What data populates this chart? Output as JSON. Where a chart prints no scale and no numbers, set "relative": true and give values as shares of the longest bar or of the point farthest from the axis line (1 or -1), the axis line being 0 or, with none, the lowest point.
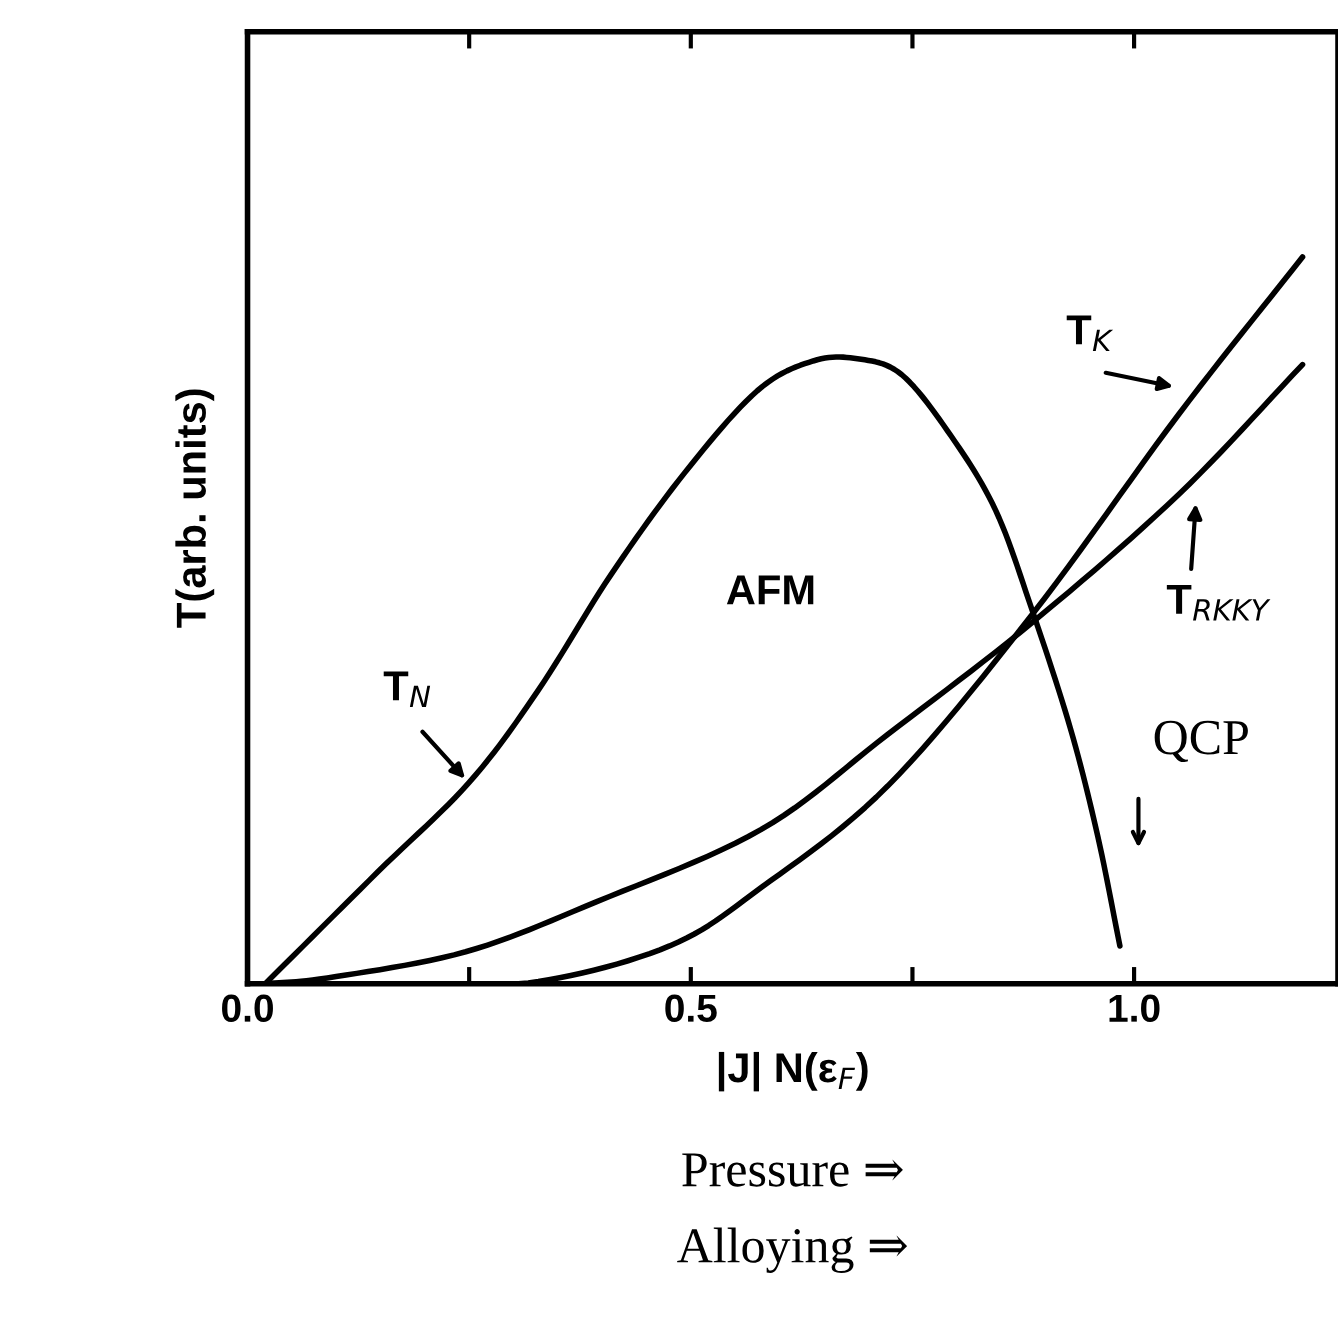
{
  "chart_data": {
    "type": "line",
    "relative": true,
    "xlabel": "|J| N(ε$_{F}$)",
    "ylabel": "T(arb. units)",
    "xlim": [
      0,
      1.23
    ],
    "xticks": [
      {
        "value": 0,
        "label": "0.0"
      },
      {
        "value": 0.25,
        "label": null
      },
      {
        "value": 0.5,
        "label": "0.5"
      },
      {
        "value": 0.75,
        "label": null
      },
      {
        "value": 1.0,
        "label": "1.0"
      }
    ],
    "legend": false,
    "grid": false,
    "marker": "none",
    "line_style": "solid",
    "series": [
      {
        "x": [
          0.02,
          0.147,
          0.25,
          0.328,
          0.41,
          0.493,
          0.575,
          0.638,
          0.688,
          0.738,
          0.794,
          0.844,
          0.885,
          0.928,
          0.959,
          0.984
        ],
        "values": [
          0,
          0.154,
          0.277,
          0.404,
          0.563,
          0.703,
          0.816,
          0.857,
          0.86,
          0.838,
          0.753,
          0.651,
          0.514,
          0.352,
          0.203,
          0.052
        ],
        "color": "#000000"
      },
      {
        "x": [
          0.02,
          0.09,
          0.246,
          0.394,
          0.579,
          0.722,
          0.885,
          1.05,
          1.19
        ],
        "values": [
          0,
          0.008,
          0.044,
          0.113,
          0.212,
          0.343,
          0.497,
          0.673,
          0.852
        ],
        "color": "#000000"
      },
      {
        "x": [
          0.2,
          0.328,
          0.476,
          0.579,
          0.722,
          0.885,
          1.05,
          1.19
        ],
        "values": [
          0,
          0.003,
          0.052,
          0.132,
          0.272,
          0.508,
          0.783,
          1.0
        ],
        "color": "#000000"
      }
    ],
    "annotations": [
      "AFM",
      "T$_{N}$",
      "T$_{K}$",
      "T$_{RKKY}$",
      "QCP",
      "Pressure ⇒",
      "Alloying ⇒"
    ]
  }
}
